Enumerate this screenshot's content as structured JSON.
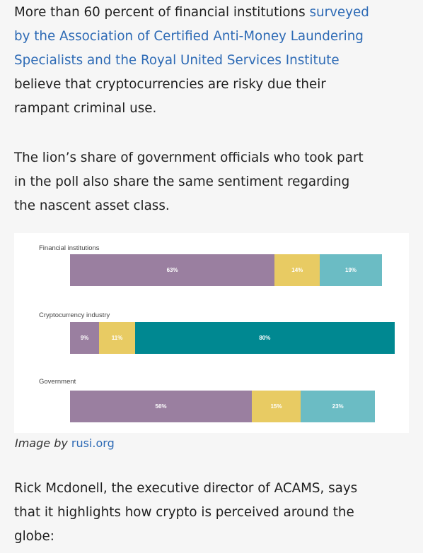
{
  "article": {
    "paragraph1": {
      "lines": [
        {
          "text": "More than 60 percent of financial institutions ",
          "link": "surveyed"
        },
        {
          "text": "",
          "link": "by the Association of Certified Anti-Money Laundering"
        },
        {
          "text": "",
          "link": "Specialists and the Royal United Services Institute"
        },
        {
          "text": "believe that cryptocurrencies are risky due their",
          "link": ""
        },
        {
          "text": "rampant criminal use.",
          "link": ""
        }
      ]
    },
    "paragraph2": {
      "lines": [
        "The lion’s share of government officials who took part",
        "in the poll also share the same sentiment regarding",
        "the nascent asset class."
      ]
    },
    "paragraph3": {
      "lines": [
        "Rick Mcdonell, the executive director of ACAMS, says",
        "that it highlights how crypto is perceived around the",
        "globe:"
      ]
    },
    "caption": {
      "prefix": "Image by ",
      "link": "rusi.org"
    }
  },
  "chart_data": {
    "type": "bar",
    "stacked": true,
    "orientation": "horizontal",
    "categories": [
      "Financial institutions",
      "Cryptocurrency industry",
      "Government"
    ],
    "series": [
      {
        "values": [
          63,
          9,
          56
        ],
        "color": "#9a7fa0"
      },
      {
        "values": [
          14,
          11,
          15
        ],
        "color": "#e8cb63"
      },
      {
        "values": [
          19,
          80,
          23
        ],
        "color": "#6bbcc4"
      }
    ],
    "labels": [
      [
        "63%",
        "14%",
        "19%"
      ],
      [
        "9%",
        "11%",
        "80%"
      ],
      [
        "56%",
        "15%",
        "23%"
      ]
    ],
    "highlight_color": "#008891",
    "highlight": {
      "group": 1,
      "segment": 2
    },
    "xlim": [
      0,
      100
    ],
    "grid": false
  }
}
